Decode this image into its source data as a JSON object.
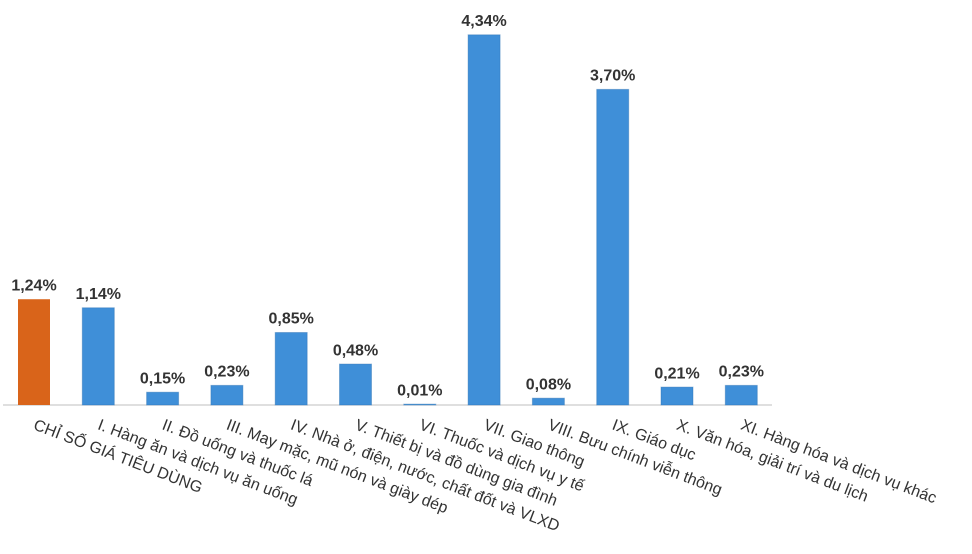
{
  "chart_data": {
    "type": "bar",
    "categories": [
      "CHỈ SỐ GIÁ TIÊU DÙNG",
      "I. Hàng ăn và dịch vụ ăn uống",
      "II. Đồ uống và thuốc lá",
      "III. May mặc, mũ nón và giày dép",
      "IV. Nhà ở, điện, nước, chất đốt và VLXD",
      "V. Thiết bị và đồ dùng gia đình",
      "VI. Thuốc và dịch vụ y tế",
      "VII. Giao thông",
      "VIII. Bưu chính viễn thông",
      "IX. Giáo dục",
      "X. Văn hóa, giải trí và du lịch",
      "XI. Hàng hóa và dịch vụ khác"
    ],
    "values": [
      1.24,
      1.14,
      0.15,
      0.23,
      0.85,
      0.48,
      0.01,
      4.34,
      0.08,
      3.7,
      0.21,
      0.23
    ],
    "value_labels": [
      "1,24%",
      "1,14%",
      "0,15%",
      "0,23%",
      "0,85%",
      "0,48%",
      "0,01%",
      "4,34%",
      "0,08%",
      "3,70%",
      "0,21%",
      "0,23%"
    ],
    "colors": [
      "#d9641a",
      "#3f8fd8",
      "#3f8fd8",
      "#3f8fd8",
      "#3f8fd8",
      "#3f8fd8",
      "#3f8fd8",
      "#3f8fd8",
      "#3f8fd8",
      "#3f8fd8",
      "#3f8fd8",
      "#3f8fd8"
    ]
  }
}
